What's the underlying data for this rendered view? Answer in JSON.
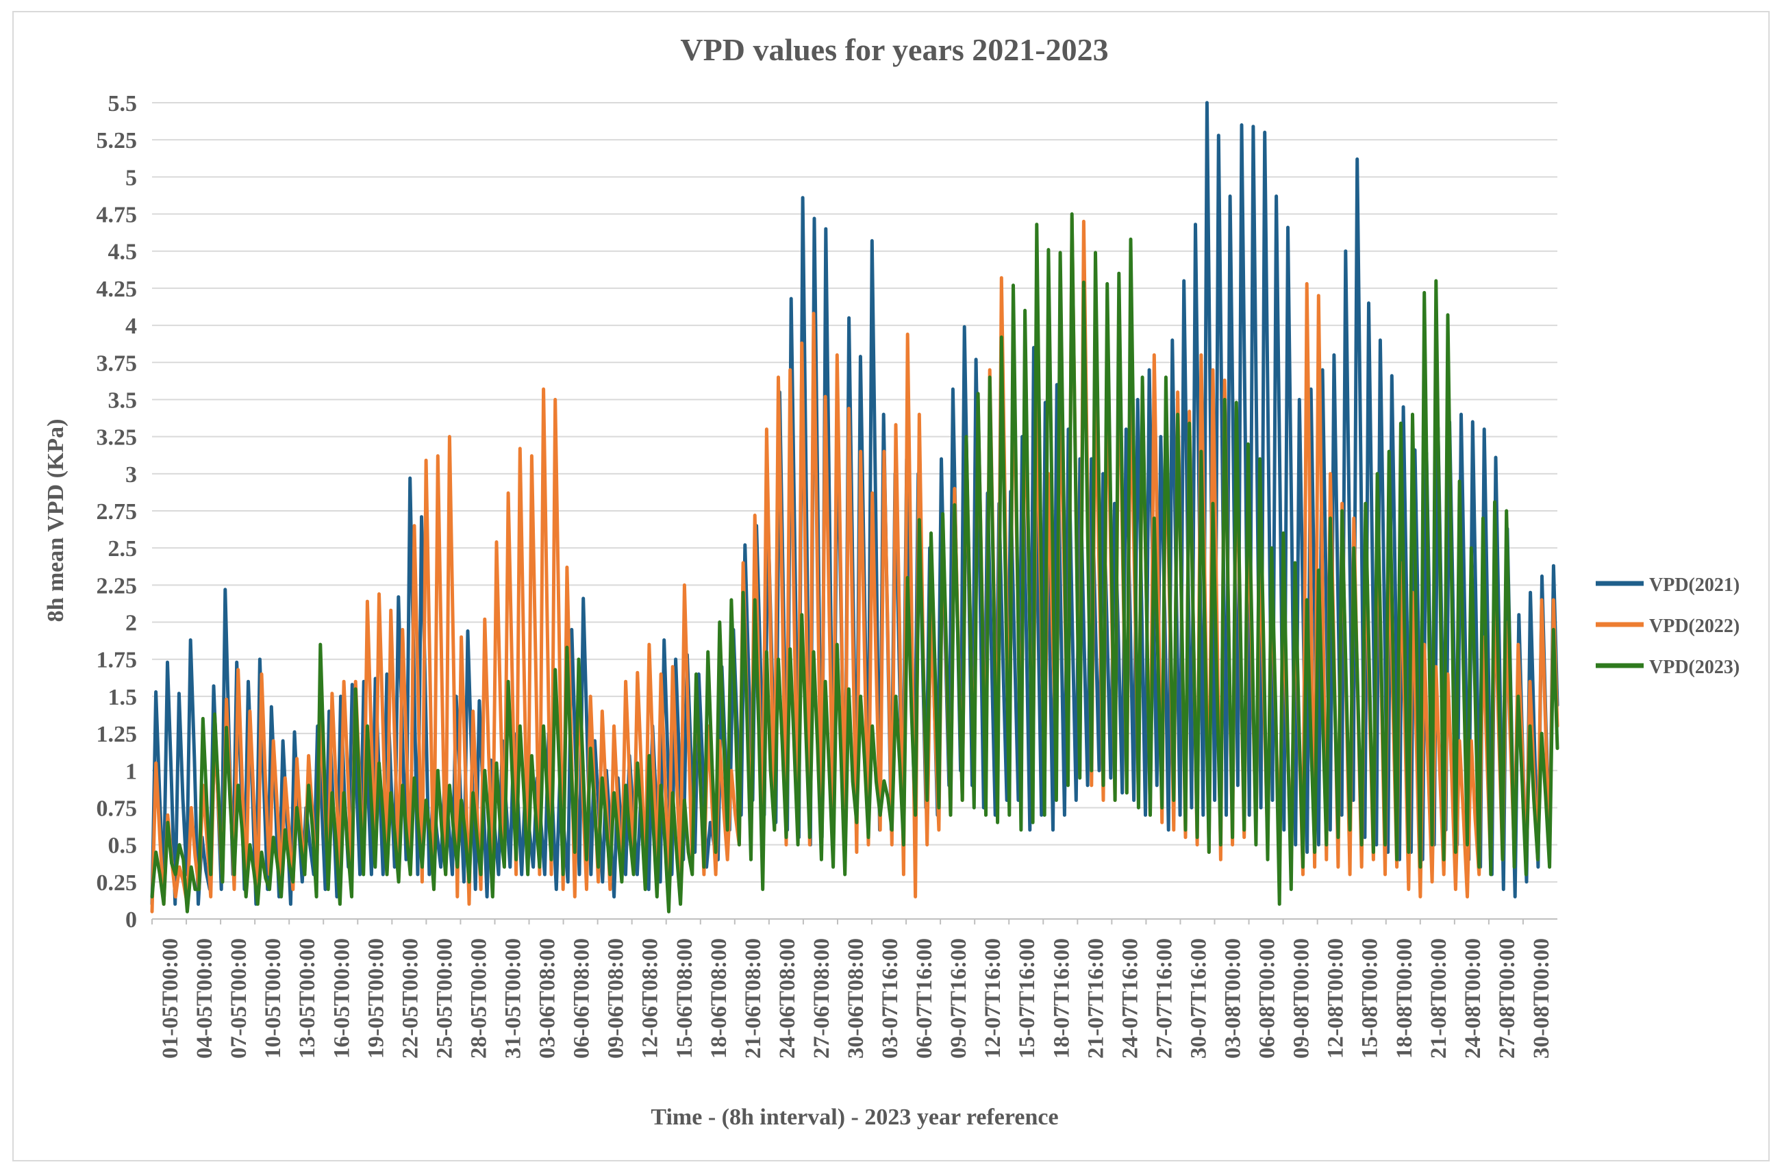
{
  "chart_data": {
    "type": "line",
    "title": "VPD values for years 2021-2023",
    "xlabel": "Time - (8h interval) - 2023 year reference",
    "ylabel": "8h mean VPD (KPa)",
    "ylim": [
      0,
      5.5
    ],
    "yticks": [
      "0",
      "0.25",
      "0.5",
      "0.75",
      "1",
      "1.25",
      "1.5",
      "1.75",
      "2",
      "2.25",
      "2.5",
      "2.75",
      "3",
      "3.25",
      "3.5",
      "3.75",
      "4",
      "4.25",
      "4.5",
      "4.75",
      "5",
      "5.25",
      "5.5"
    ],
    "x_tick_labels": [
      "01-05T00:00",
      "04-05T00:00",
      "07-05T00:00",
      "10-05T00:00",
      "13-05T00:00",
      "16-05T00:00",
      "19-05T00:00",
      "22-05T00:00",
      "25-05T00:00",
      "28-05T00:00",
      "31-05T00:00",
      "03-06T08:00",
      "06-06T08:00",
      "09-06T08:00",
      "12-06T08:00",
      "15-06T08:00",
      "18-06T08:00",
      "21-06T08:00",
      "24-06T08:00",
      "27-06T08:00",
      "30-06T08:00",
      "03-07T16:00",
      "06-07T16:00",
      "09-07T16:00",
      "12-07T16:00",
      "15-07T16:00",
      "18-07T16:00",
      "21-07T16:00",
      "24-07T16:00",
      "27-07T16:00",
      "30-07T16:00",
      "03-08T00:00",
      "06-08T00:00",
      "09-08T00:00",
      "12-08T00:00",
      "15-08T00:00",
      "18-08T00:00",
      "21-08T00:00",
      "24-08T00:00",
      "27-08T00:00",
      "30-08T00:00"
    ],
    "x_interval_hours": 8,
    "legend_position": "right",
    "grid": "horizontal",
    "series": [
      {
        "name": "VPD(2021)",
        "color": "#1f5f8b",
        "daily_peaks": [
          1.53,
          1.73,
          1.52,
          1.88,
          0.55,
          1.57,
          2.22,
          1.73,
          1.6,
          1.75,
          1.43,
          1.2,
          1.26,
          0.75,
          1.3,
          1.4,
          1.5,
          1.58,
          1.6,
          1.62,
          1.65,
          2.17,
          2.97,
          2.71,
          0.85,
          0.95,
          1.5,
          1.94,
          1.47,
          1.07,
          1.2,
          1.25,
          0.9,
          0.95,
          1.25,
          1.0,
          1.95,
          2.16,
          1.2,
          1.0,
          0.95,
          1.1,
          0.85,
          1.3,
          1.88,
          1.75,
          1.78,
          1.65,
          0.65,
          1.7,
          1.95,
          2.52,
          2.65,
          2.7,
          3.55,
          4.18,
          4.86,
          4.72,
          4.65,
          3.4,
          4.05,
          3.79,
          4.57,
          3.4,
          3.0,
          3.1,
          3.0,
          2.5,
          3.1,
          3.57,
          3.99,
          3.77,
          2.87,
          2.8,
          2.88,
          3.25,
          3.85,
          3.48,
          3.6,
          3.3,
          3.1,
          3.1,
          3.0,
          2.8,
          3.3,
          3.5,
          3.7,
          3.25,
          3.9,
          4.3,
          4.68,
          5.5,
          5.28,
          4.87,
          5.35,
          5.34,
          5.3,
          4.87,
          4.66,
          3.5,
          3.57,
          3.7,
          3.8,
          4.5,
          5.12,
          4.15,
          3.9,
          3.66,
          3.45,
          3.16,
          3.14,
          3.31,
          3.35,
          3.4,
          3.35,
          3.3,
          3.11,
          2.63,
          2.05,
          2.2,
          2.31,
          2.38
        ],
        "daily_lows": [
          0.1,
          0.2,
          0.1,
          0.3,
          0.1,
          0.2,
          0.2,
          0.3,
          0.2,
          0.1,
          0.2,
          0.15,
          0.1,
          0.25,
          0.3,
          0.2,
          0.15,
          0.35,
          0.3,
          0.3,
          0.3,
          0.35,
          0.4,
          0.3,
          0.3,
          0.35,
          0.3,
          0.25,
          0.2,
          0.15,
          0.3,
          0.35,
          0.3,
          0.35,
          0.3,
          0.2,
          0.25,
          0.3,
          0.3,
          0.25,
          0.15,
          0.3,
          0.3,
          0.2,
          0.25,
          0.3,
          0.4,
          0.45,
          0.35,
          0.4,
          0.6,
          0.7,
          0.8,
          0.7,
          0.65,
          0.6,
          0.55,
          0.5,
          0.55,
          0.6,
          0.55,
          0.7,
          0.8,
          0.6,
          0.6,
          0.7,
          0.8,
          0.75,
          0.7,
          0.9,
          1.0,
          0.9,
          0.75,
          0.7,
          0.8,
          0.8,
          0.6,
          0.7,
          0.6,
          0.7,
          0.8,
          0.9,
          1.0,
          0.95,
          0.85,
          0.8,
          0.7,
          0.9,
          0.6,
          0.7,
          0.75,
          0.7,
          0.8,
          0.7,
          0.9,
          0.7,
          0.75,
          0.8,
          0.6,
          0.5,
          0.45,
          0.5,
          0.6,
          0.7,
          0.8,
          0.55,
          0.5,
          0.45,
          0.4,
          0.45,
          0.4,
          0.5,
          0.6,
          0.5,
          0.4,
          0.35,
          0.3,
          0.2,
          0.15,
          0.25,
          0.35,
          0.5
        ]
      },
      {
        "name": "VPD(2022)",
        "color": "#ed7d31",
        "daily_peaks": [
          1.05,
          0.7,
          0.35,
          0.75,
          0.9,
          1.3,
          1.48,
          1.68,
          1.4,
          1.65,
          1.2,
          0.95,
          1.08,
          1.1,
          1.37,
          1.52,
          1.6,
          1.6,
          2.14,
          2.19,
          2.08,
          1.95,
          2.65,
          3.09,
          3.12,
          3.25,
          1.9,
          1.4,
          2.02,
          2.54,
          2.87,
          3.17,
          3.12,
          3.57,
          3.5,
          2.37,
          1.6,
          1.5,
          1.4,
          1.3,
          1.6,
          1.66,
          1.85,
          1.65,
          1.7,
          2.25,
          1.6,
          1.3,
          1.2,
          1.0,
          2.4,
          2.72,
          3.3,
          3.65,
          3.7,
          3.88,
          4.08,
          3.52,
          3.8,
          3.44,
          3.15,
          2.87,
          3.15,
          3.33,
          3.94,
          3.4,
          2.1,
          2.7,
          2.9,
          3.2,
          3.5,
          3.7,
          4.32,
          3.85,
          3.6,
          3.5,
          3.0,
          3.6,
          4.72,
          4.7,
          3.66,
          3.82,
          3.99,
          3.7,
          3.6,
          3.8,
          3.4,
          3.55,
          3.42,
          3.8,
          3.7,
          3.63,
          3.3,
          2.85,
          2.5,
          2.3,
          2.1,
          2.15,
          4.28,
          4.2,
          3.0,
          2.8,
          2.7,
          2.55,
          2.8,
          2.6,
          2.4,
          2.2,
          1.85,
          1.7,
          1.65,
          1.2,
          1.2,
          1.9,
          2.2,
          2.0,
          1.85,
          1.6,
          2.15,
          2.15
        ],
        "daily_lows": [
          0.05,
          0.1,
          0.15,
          0.1,
          0.2,
          0.15,
          0.25,
          0.2,
          0.2,
          0.15,
          0.3,
          0.25,
          0.2,
          0.3,
          0.25,
          0.3,
          0.35,
          0.3,
          0.35,
          0.4,
          0.3,
          0.35,
          0.3,
          0.25,
          0.2,
          0.3,
          0.15,
          0.1,
          0.2,
          0.35,
          0.4,
          0.3,
          0.35,
          0.3,
          0.3,
          0.2,
          0.15,
          0.2,
          0.25,
          0.2,
          0.3,
          0.35,
          0.3,
          0.3,
          0.25,
          0.3,
          0.35,
          0.3,
          0.3,
          0.4,
          0.5,
          0.5,
          0.55,
          0.6,
          0.5,
          0.55,
          0.5,
          0.6,
          0.65,
          0.4,
          0.45,
          0.5,
          0.6,
          0.5,
          0.3,
          0.15,
          0.5,
          0.6,
          0.7,
          0.8,
          0.9,
          0.85,
          0.9,
          0.95,
          1.0,
          0.95,
          0.9,
          1.1,
          1.05,
          1.0,
          0.9,
          0.8,
          0.8,
          0.85,
          0.8,
          0.7,
          0.65,
          0.6,
          0.55,
          0.5,
          0.45,
          0.4,
          0.5,
          0.55,
          0.6,
          0.5,
          0.45,
          0.35,
          0.3,
          0.35,
          0.4,
          0.35,
          0.3,
          0.35,
          0.4,
          0.3,
          0.35,
          0.2,
          0.15,
          0.25,
          0.3,
          0.2,
          0.15,
          0.3,
          0.35,
          0.4,
          0.45,
          0.35,
          0.4,
          0.45
        ]
      },
      {
        "name": "VPD(2023)",
        "color": "#2e7a1e",
        "daily_peaks": [
          0.45,
          0.65,
          0.5,
          0.35,
          1.35,
          1.38,
          1.29,
          0.9,
          0.5,
          0.45,
          0.55,
          0.6,
          0.75,
          0.9,
          1.85,
          0.85,
          0.85,
          1.55,
          1.3,
          1.05,
          0.85,
          0.9,
          0.95,
          0.8,
          1.0,
          0.9,
          0.8,
          0.85,
          1.0,
          1.05,
          1.6,
          1.3,
          1.1,
          1.3,
          1.68,
          1.83,
          1.75,
          1.15,
          0.95,
          0.85,
          0.9,
          1.05,
          1.1,
          0.9,
          0.85,
          0.8,
          1.65,
          1.8,
          2.0,
          2.15,
          2.2,
          2.15,
          1.8,
          1.75,
          1.82,
          2.05,
          1.8,
          1.6,
          1.85,
          1.55,
          1.5,
          1.3,
          0.93,
          1.5,
          2.3,
          2.69,
          2.6,
          2.73,
          2.79,
          3.25,
          3.54,
          3.65,
          3.92,
          4.27,
          4.1,
          4.68,
          4.51,
          4.49,
          4.75,
          4.29,
          4.49,
          4.28,
          4.35,
          4.58,
          3.65,
          2.7,
          3.65,
          3.4,
          3.34,
          3.15,
          2.8,
          3.5,
          3.48,
          3.2,
          3.1,
          2.5,
          2.6,
          2.4,
          2.15,
          2.35,
          2.7,
          2.75,
          2.5,
          2.8,
          3.0,
          3.15,
          3.34,
          3.4,
          4.22,
          4.3,
          4.07,
          2.95,
          2.5,
          2.7,
          2.81,
          2.75,
          1.5,
          1.3,
          1.25,
          1.95
        ],
        "daily_lows": [
          0.15,
          0.1,
          0.3,
          0.05,
          0.2,
          0.3,
          0.25,
          0.3,
          0.15,
          0.1,
          0.2,
          0.15,
          0.25,
          0.3,
          0.15,
          0.2,
          0.1,
          0.15,
          0.3,
          0.35,
          0.3,
          0.25,
          0.3,
          0.35,
          0.2,
          0.3,
          0.35,
          0.25,
          0.3,
          0.15,
          0.35,
          0.4,
          0.3,
          0.35,
          0.4,
          0.3,
          0.45,
          0.4,
          0.35,
          0.3,
          0.25,
          0.3,
          0.2,
          0.15,
          0.05,
          0.1,
          0.3,
          0.35,
          0.45,
          0.6,
          0.5,
          0.4,
          0.2,
          0.6,
          0.55,
          0.5,
          0.55,
          0.4,
          0.35,
          0.3,
          0.65,
          0.55,
          0.7,
          0.6,
          0.5,
          0.7,
          0.8,
          0.75,
          0.7,
          0.8,
          0.75,
          0.7,
          0.65,
          0.7,
          0.6,
          0.65,
          0.7,
          0.8,
          0.9,
          0.95,
          1.0,
          0.9,
          0.8,
          0.85,
          0.75,
          0.7,
          0.75,
          0.8,
          0.6,
          0.55,
          0.45,
          0.5,
          0.55,
          0.6,
          0.5,
          0.4,
          0.1,
          0.2,
          0.35,
          0.45,
          0.5,
          0.55,
          0.6,
          0.5,
          0.45,
          0.5,
          0.4,
          0.45,
          0.35,
          0.5,
          0.4,
          0.45,
          0.5,
          0.35,
          0.3,
          0.4,
          0.35,
          0.3,
          0.4,
          0.35
        ]
      }
    ]
  }
}
